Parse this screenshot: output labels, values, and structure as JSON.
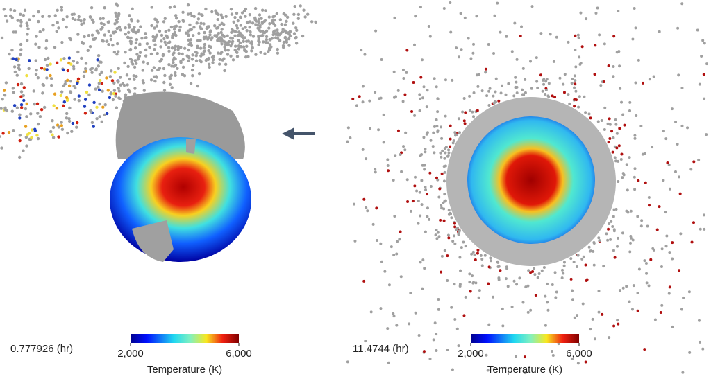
{
  "panels": [
    {
      "time": "0.777926 (hr)",
      "colorbar": {
        "label": "Temperature (K)",
        "ticks": [
          {
            "value": 2000,
            "label": "2,000"
          },
          {
            "value": 6000,
            "label": "6,000"
          }
        ]
      }
    },
    {
      "time": "11.4744 (hr)",
      "colorbar": {
        "label": "Temperature (K)",
        "ticks": [
          {
            "value": 2000,
            "label": "2,000"
          },
          {
            "value": 6000,
            "label": "6,000"
          }
        ]
      }
    }
  ]
}
